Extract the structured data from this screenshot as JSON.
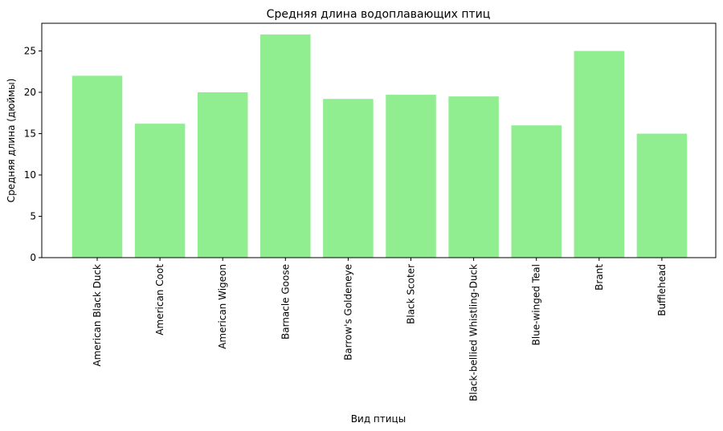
{
  "chart_data": {
    "type": "bar",
    "title": "Средняя длина водоплавающих птиц",
    "xlabel": "Вид птицы",
    "ylabel": "Средняя длина (дюймы)",
    "categories": [
      "American Black Duck",
      "American Coot",
      "American Wigeon",
      "Barnacle Goose",
      "Barrow's Goldeneye",
      "Black Scoter",
      "Black-bellied Whistling-Duck",
      "Blue-winged Teal",
      "Brant",
      "Bufflehead"
    ],
    "values": [
      22,
      16.2,
      20,
      27,
      19.2,
      19.7,
      19.5,
      16,
      25,
      15
    ],
    "ylim": [
      0,
      28.35
    ],
    "yticks": [
      0,
      5,
      10,
      15,
      20,
      25
    ],
    "bar_color": "#90ee90",
    "grid": false,
    "legend": "none"
  }
}
